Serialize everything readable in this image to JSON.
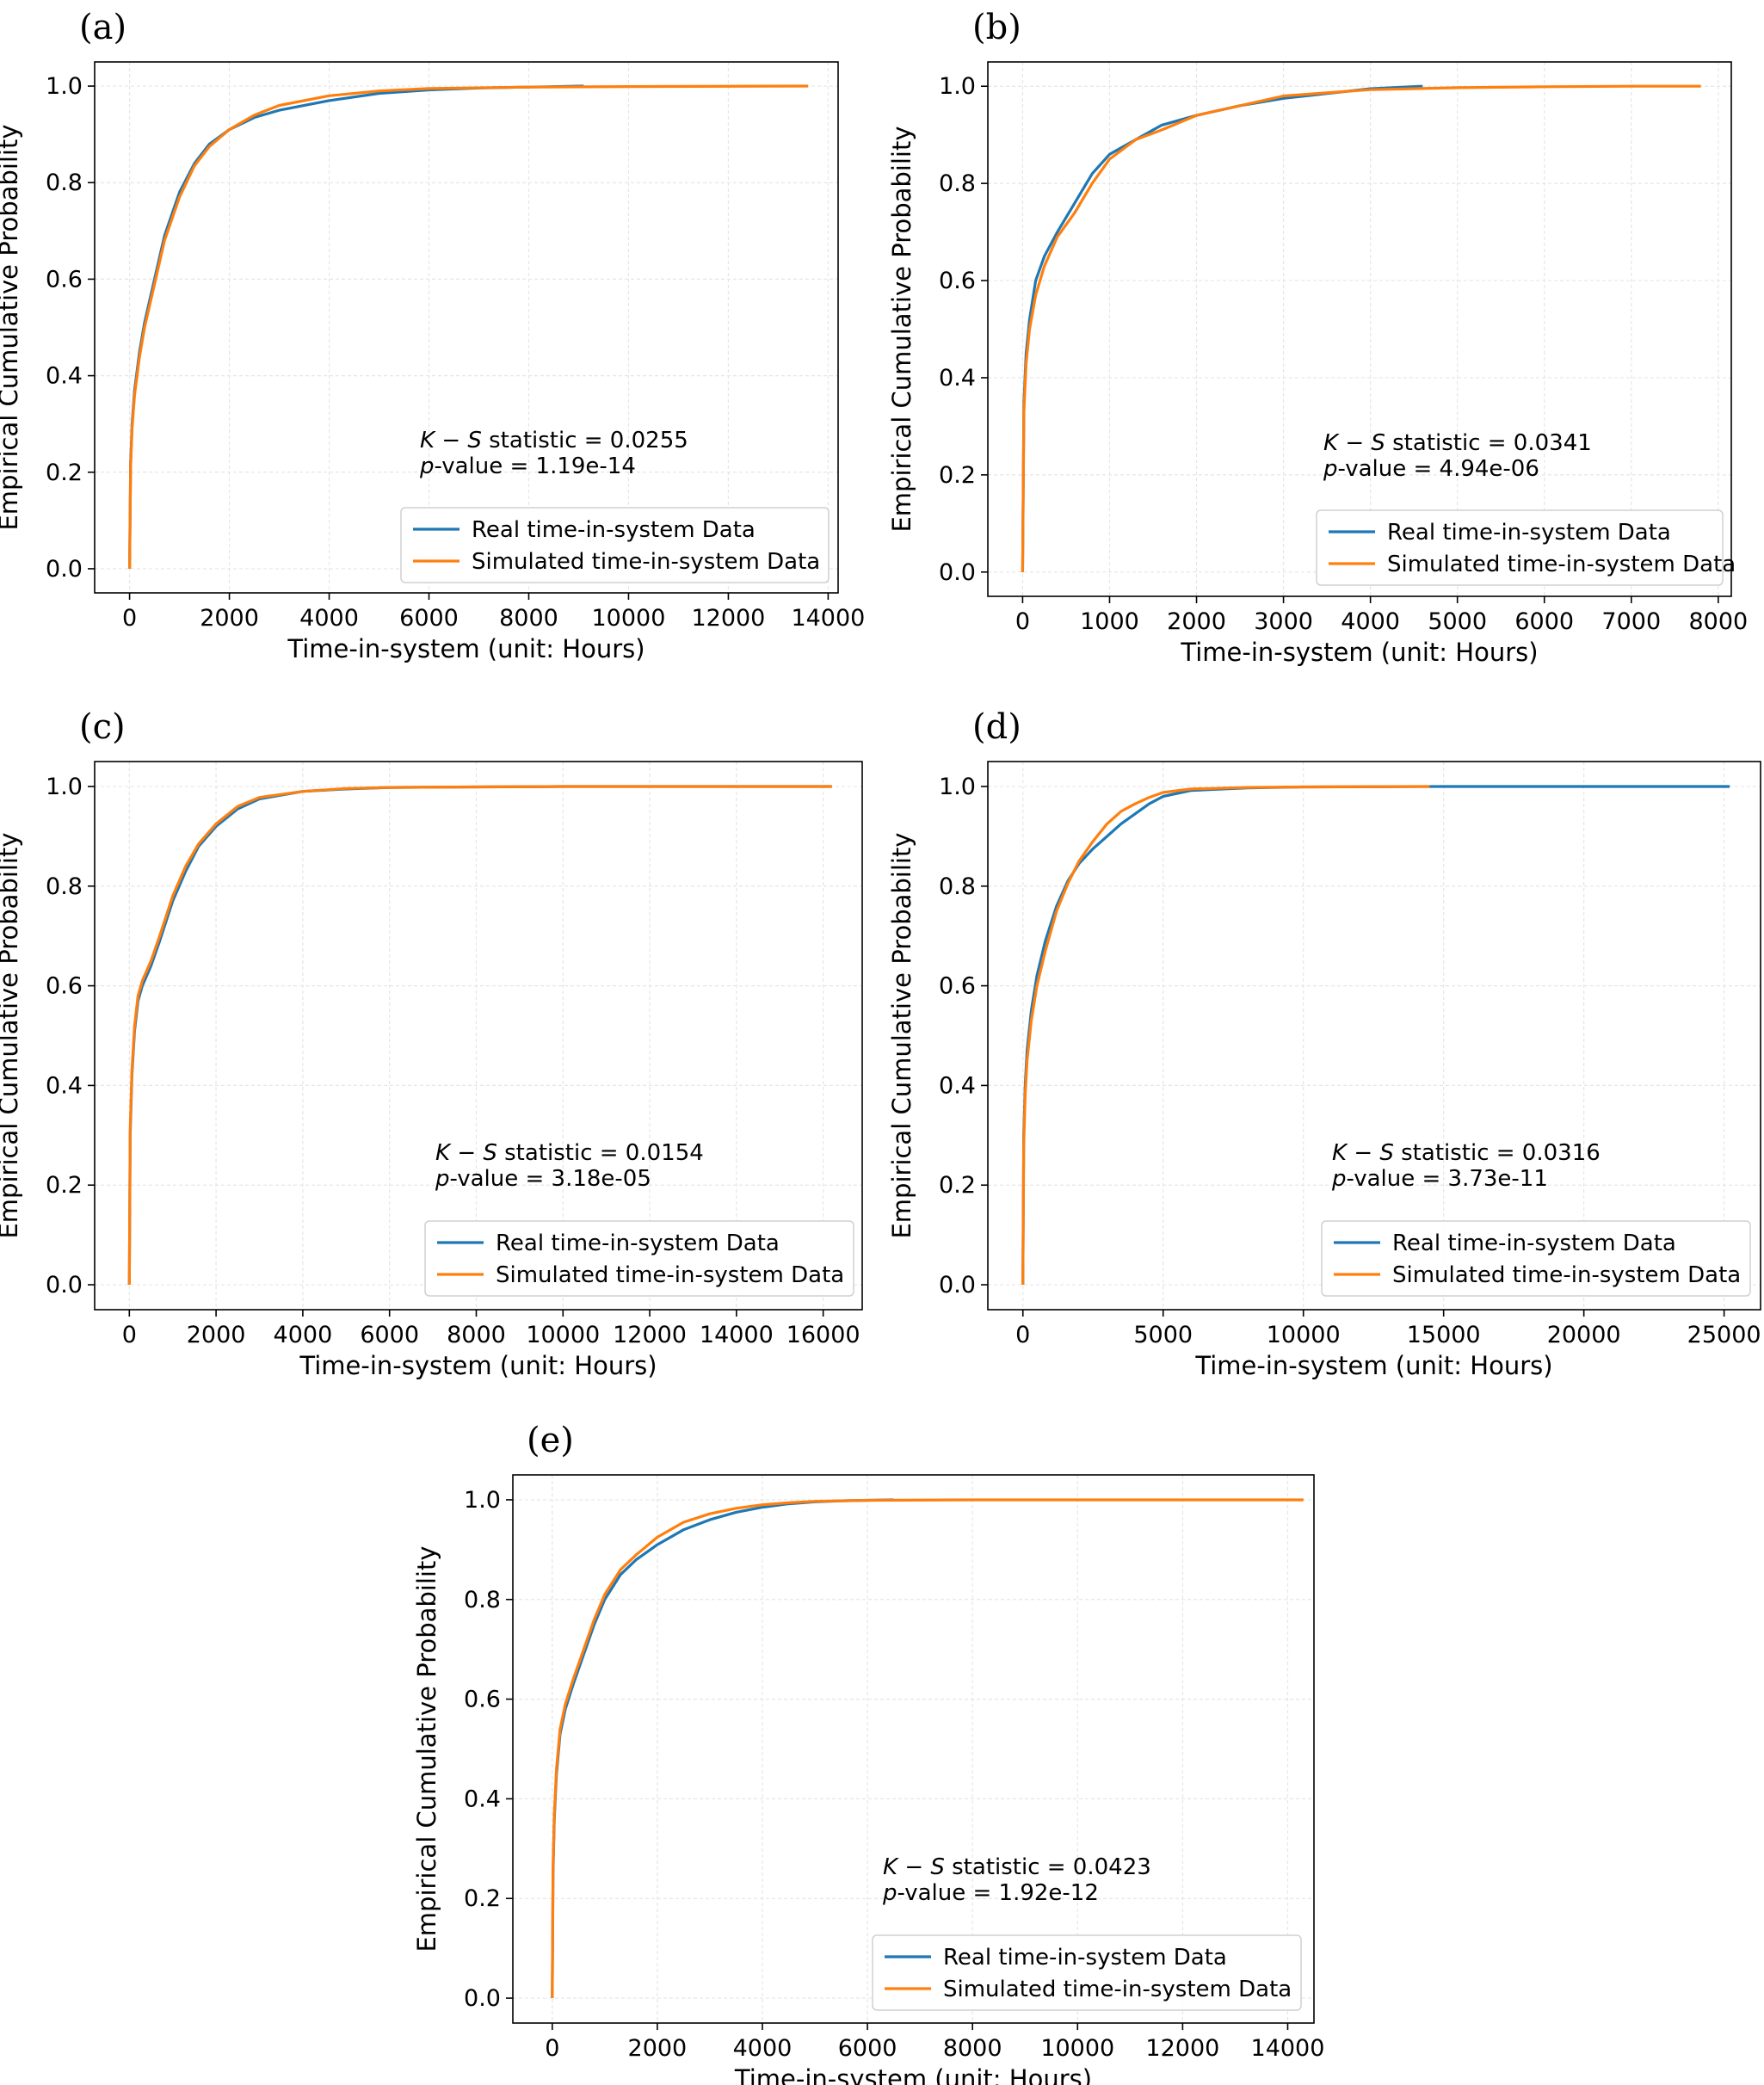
{
  "colors": {
    "real": "#1f77b4",
    "simulated": "#ff7f0e",
    "grid": "#e6e6e6",
    "axes": "#000000"
  },
  "chart_data": [
    {
      "panel": "(a)",
      "type": "line",
      "xlabel": "Time-in-system (unit: Hours)",
      "ylabel": "Empirical Cumulative Probability",
      "xlim": [
        -700,
        14200
      ],
      "ylim": [
        -0.05,
        1.05
      ],
      "xticks": [
        0,
        2000,
        4000,
        6000,
        8000,
        10000,
        12000,
        14000
      ],
      "yticks": [
        0.0,
        0.2,
        0.4,
        0.6,
        0.8,
        1.0
      ],
      "grid": true,
      "legend_position": "lower right",
      "annotation": {
        "ks_label": "K − S",
        "ks_rest": " statistic = 0.0255",
        "p_label": "p",
        "p_rest": "-value = 1.19e-14"
      },
      "series": [
        {
          "name": "Real time-in-system Data",
          "color": "#1f77b4",
          "x": [
            0,
            20,
            50,
            100,
            200,
            300,
            500,
            700,
            1000,
            1300,
            1600,
            2000,
            2500,
            3000,
            4000,
            5000,
            6000,
            7000,
            8000,
            9100
          ],
          "y": [
            0,
            0.22,
            0.3,
            0.37,
            0.45,
            0.51,
            0.6,
            0.69,
            0.78,
            0.84,
            0.88,
            0.91,
            0.935,
            0.95,
            0.97,
            0.985,
            0.992,
            0.996,
            0.998,
            1.0
          ]
        },
        {
          "name": "Simulated time-in-system Data",
          "color": "#ff7f0e",
          "x": [
            0,
            20,
            50,
            100,
            200,
            300,
            500,
            700,
            1000,
            1300,
            1600,
            2000,
            2500,
            3000,
            4000,
            5000,
            6000,
            8000,
            10000,
            13600
          ],
          "y": [
            0,
            0.21,
            0.29,
            0.36,
            0.44,
            0.5,
            0.59,
            0.68,
            0.77,
            0.835,
            0.875,
            0.91,
            0.94,
            0.96,
            0.98,
            0.99,
            0.995,
            0.998,
            0.999,
            1.0
          ]
        }
      ]
    },
    {
      "panel": "(b)",
      "type": "line",
      "xlabel": "Time-in-system (unit: Hours)",
      "ylabel": "Empirical Cumulative Probability",
      "xlim": [
        -400,
        8150
      ],
      "ylim": [
        -0.05,
        1.05
      ],
      "xticks": [
        0,
        1000,
        2000,
        3000,
        4000,
        5000,
        6000,
        7000,
        8000
      ],
      "yticks": [
        0.0,
        0.2,
        0.4,
        0.6,
        0.8,
        1.0
      ],
      "grid": true,
      "legend_position": "lower right",
      "annotation": {
        "ks_label": "K − S",
        "ks_rest": " statistic = 0.0341",
        "p_label": "p",
        "p_rest": "-value = 4.94e-06"
      },
      "series": [
        {
          "name": "Real time-in-system Data",
          "color": "#1f77b4",
          "x": [
            0,
            15,
            40,
            80,
            150,
            250,
            400,
            600,
            800,
            1000,
            1300,
            1600,
            2000,
            2500,
            3000,
            3500,
            4000,
            4600
          ],
          "y": [
            0,
            0.35,
            0.45,
            0.52,
            0.6,
            0.65,
            0.7,
            0.76,
            0.82,
            0.86,
            0.89,
            0.92,
            0.94,
            0.96,
            0.975,
            0.985,
            0.995,
            1.0
          ]
        },
        {
          "name": "Simulated time-in-system Data",
          "color": "#ff7f0e",
          "x": [
            0,
            15,
            40,
            80,
            150,
            250,
            400,
            600,
            800,
            1000,
            1300,
            1600,
            2000,
            2500,
            3000,
            4000,
            5000,
            6000,
            7000,
            7800
          ],
          "y": [
            0,
            0.33,
            0.43,
            0.5,
            0.57,
            0.63,
            0.69,
            0.74,
            0.8,
            0.85,
            0.89,
            0.91,
            0.94,
            0.96,
            0.98,
            0.993,
            0.997,
            0.999,
            1.0,
            1.0
          ]
        }
      ]
    },
    {
      "panel": "(c)",
      "type": "line",
      "xlabel": "Time-in-system (unit: Hours)",
      "ylabel": "Empirical Cumulative Probability",
      "xlim": [
        -800,
        16900
      ],
      "ylim": [
        -0.05,
        1.05
      ],
      "xticks": [
        0,
        2000,
        4000,
        6000,
        8000,
        10000,
        12000,
        14000,
        16000
      ],
      "yticks": [
        0.0,
        0.2,
        0.4,
        0.6,
        0.8,
        1.0
      ],
      "grid": true,
      "legend_position": "lower right",
      "annotation": {
        "ks_label": "K − S",
        "ks_rest": " statistic = 0.0154",
        "p_label": "p",
        "p_rest": "-value = 3.18e-05"
      },
      "series": [
        {
          "name": "Real time-in-system Data",
          "color": "#1f77b4",
          "x": [
            0,
            20,
            60,
            120,
            200,
            300,
            500,
            700,
            1000,
            1300,
            1600,
            2000,
            2500,
            3000,
            4000,
            5000,
            6000,
            8000,
            10000,
            16200
          ],
          "y": [
            0,
            0.3,
            0.42,
            0.51,
            0.57,
            0.6,
            0.64,
            0.69,
            0.77,
            0.83,
            0.88,
            0.92,
            0.955,
            0.975,
            0.99,
            0.995,
            0.998,
            0.999,
            1.0,
            1.0
          ]
        },
        {
          "name": "Simulated time-in-system Data",
          "color": "#ff7f0e",
          "x": [
            0,
            20,
            60,
            120,
            200,
            300,
            500,
            700,
            1000,
            1300,
            1600,
            2000,
            2500,
            3000,
            4000,
            5000,
            6000,
            8000,
            10000,
            16200
          ],
          "y": [
            0,
            0.31,
            0.43,
            0.52,
            0.58,
            0.61,
            0.65,
            0.7,
            0.78,
            0.84,
            0.885,
            0.925,
            0.96,
            0.978,
            0.99,
            0.996,
            0.998,
            0.999,
            1.0,
            1.0
          ]
        }
      ]
    },
    {
      "panel": "(d)",
      "type": "line",
      "xlabel": "Time-in-system (unit: Hours)",
      "ylabel": "Empirical Cumulative Probability",
      "xlim": [
        -1250,
        26300
      ],
      "ylim": [
        -0.05,
        1.05
      ],
      "xticks": [
        0,
        5000,
        10000,
        15000,
        20000,
        25000
      ],
      "yticks": [
        0.0,
        0.2,
        0.4,
        0.6,
        0.8,
        1.0
      ],
      "grid": true,
      "legend_position": "lower right",
      "annotation": {
        "ks_label": "K − S",
        "ks_rest": " statistic = 0.0316",
        "p_label": "p",
        "p_rest": "-value = 3.73e-11"
      },
      "series": [
        {
          "name": "Real time-in-system Data",
          "color": "#1f77b4",
          "x": [
            0,
            30,
            80,
            150,
            300,
            500,
            800,
            1200,
            1600,
            2000,
            2500,
            3000,
            3500,
            4000,
            4500,
            5000,
            6000,
            8000,
            10000,
            15000,
            20000,
            25200
          ],
          "y": [
            0,
            0.3,
            0.4,
            0.47,
            0.55,
            0.62,
            0.69,
            0.76,
            0.81,
            0.845,
            0.875,
            0.9,
            0.925,
            0.945,
            0.965,
            0.98,
            0.992,
            0.997,
            0.999,
            1.0,
            1.0,
            1.0
          ]
        },
        {
          "name": "Simulated time-in-system Data",
          "color": "#ff7f0e",
          "x": [
            0,
            30,
            80,
            150,
            300,
            500,
            800,
            1200,
            1600,
            2000,
            2500,
            3000,
            3500,
            4000,
            4500,
            5000,
            6000,
            8000,
            10000,
            14500
          ],
          "y": [
            0,
            0.28,
            0.38,
            0.45,
            0.53,
            0.6,
            0.67,
            0.75,
            0.805,
            0.85,
            0.89,
            0.925,
            0.95,
            0.965,
            0.978,
            0.988,
            0.995,
            0.998,
            0.999,
            1.0
          ]
        }
      ]
    },
    {
      "panel": "(e)",
      "type": "line",
      "xlabel": "Time-in-system (unit: Hours)",
      "ylabel": "Empirical Cumulative Probability",
      "xlim": [
        -750,
        14500
      ],
      "ylim": [
        -0.05,
        1.05
      ],
      "xticks": [
        0,
        2000,
        4000,
        6000,
        8000,
        10000,
        12000,
        14000
      ],
      "yticks": [
        0.0,
        0.2,
        0.4,
        0.6,
        0.8,
        1.0
      ],
      "grid": true,
      "legend_position": "lower right",
      "annotation": {
        "ks_label": "K − S",
        "ks_rest": " statistic = 0.0423",
        "p_label": "p",
        "p_rest": "-value = 1.92e-12"
      },
      "series": [
        {
          "name": "Real time-in-system Data",
          "color": "#1f77b4",
          "x": [
            0,
            15,
            40,
            80,
            150,
            250,
            400,
            600,
            800,
            1000,
            1300,
            1600,
            2000,
            2500,
            3000,
            3500,
            4000,
            4500,
            5000,
            5500,
            6500
          ],
          "y": [
            0,
            0.25,
            0.36,
            0.45,
            0.53,
            0.58,
            0.63,
            0.69,
            0.75,
            0.8,
            0.85,
            0.88,
            0.91,
            0.94,
            0.96,
            0.975,
            0.985,
            0.992,
            0.996,
            0.998,
            1.0
          ]
        },
        {
          "name": "Simulated time-in-system Data",
          "color": "#ff7f0e",
          "x": [
            0,
            15,
            40,
            80,
            150,
            250,
            400,
            600,
            800,
            1000,
            1300,
            1600,
            2000,
            2500,
            3000,
            3500,
            4000,
            4500,
            5000,
            6000,
            8000,
            10000,
            14300
          ],
          "y": [
            0,
            0.26,
            0.37,
            0.46,
            0.54,
            0.59,
            0.64,
            0.7,
            0.76,
            0.81,
            0.86,
            0.89,
            0.925,
            0.955,
            0.972,
            0.983,
            0.99,
            0.994,
            0.997,
            0.999,
            1.0,
            1.0,
            1.0
          ]
        }
      ]
    }
  ]
}
